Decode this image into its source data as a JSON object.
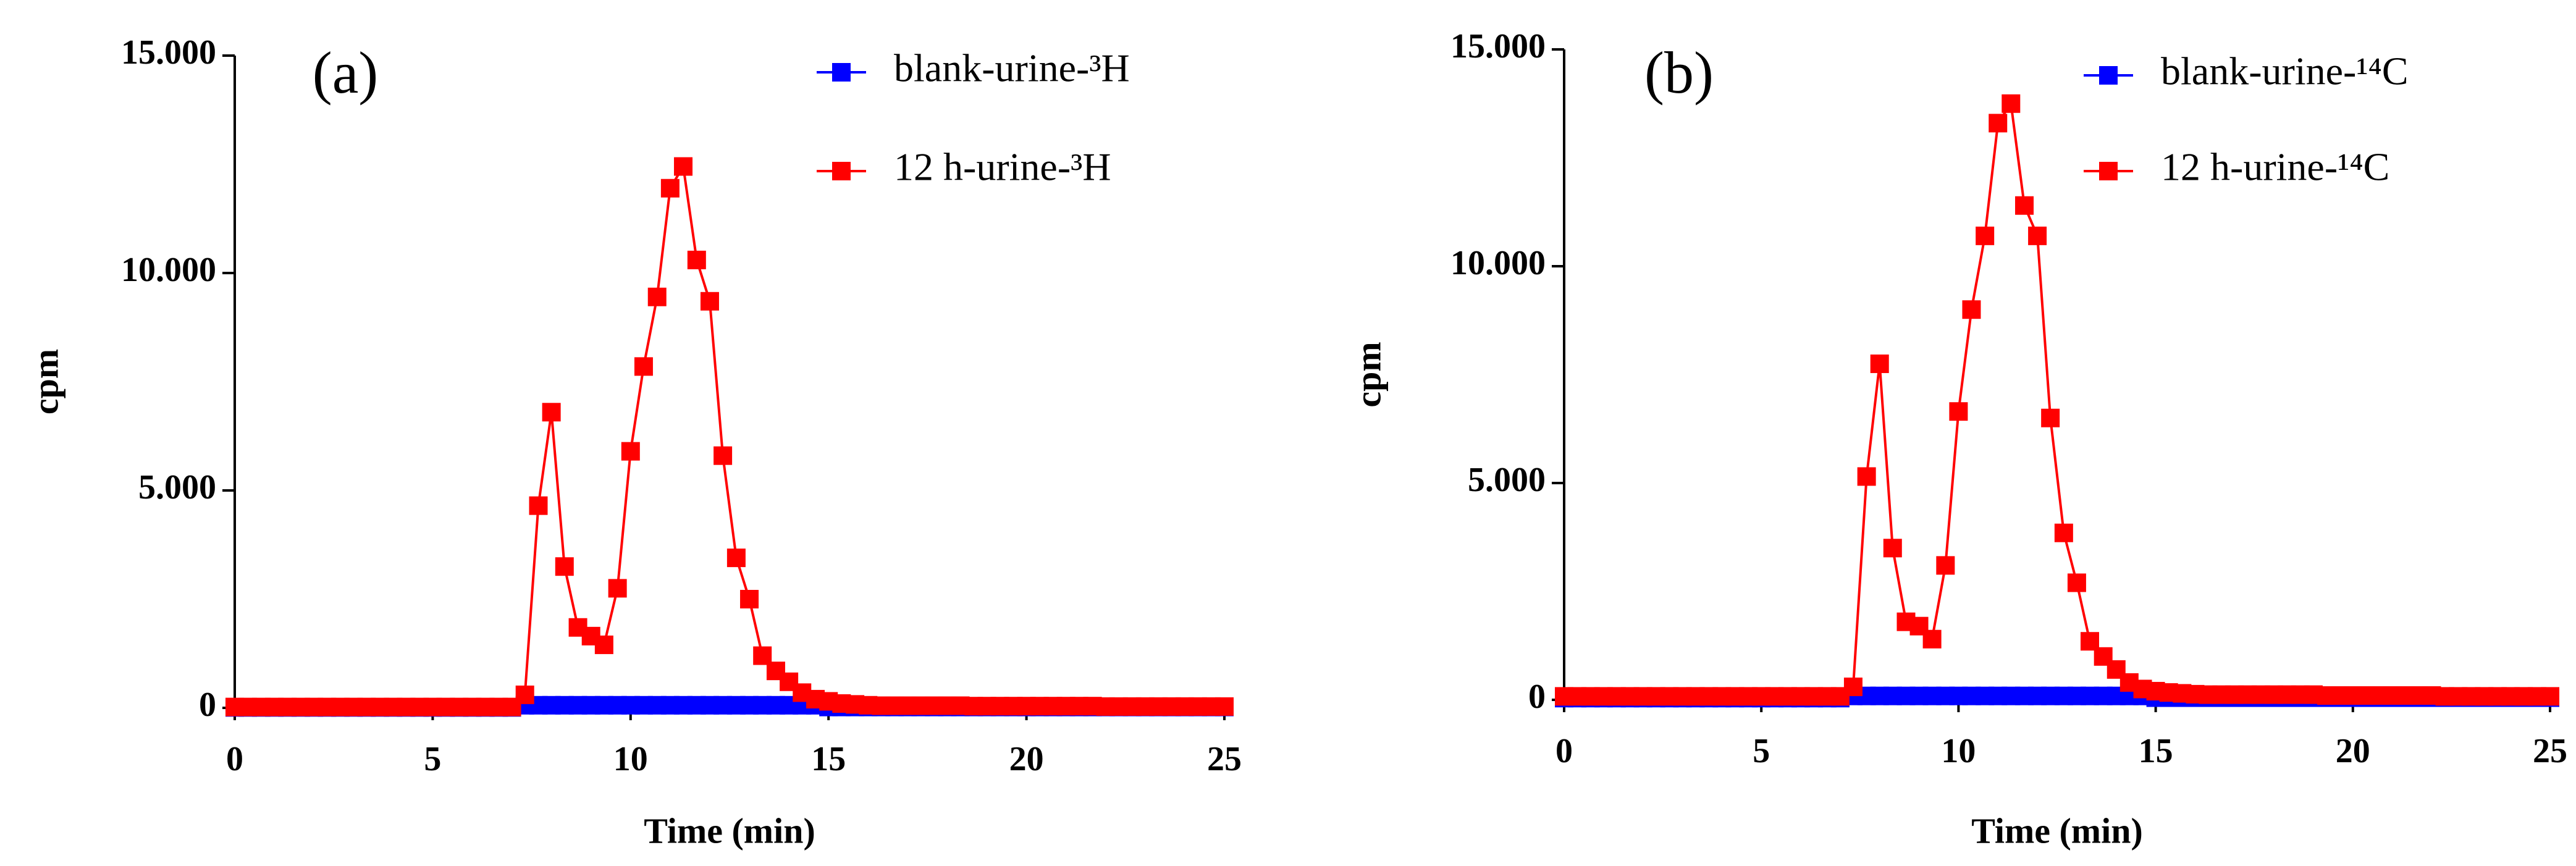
{
  "chart_data": [
    {
      "type": "line",
      "panel_label": "(a)",
      "xlabel": "Time (min)",
      "ylabel": "cpm",
      "xlim": [
        0,
        25
      ],
      "xticks": [
        0,
        5,
        10,
        15,
        20,
        25
      ],
      "ylim": [
        0,
        15000
      ],
      "yticks": [
        0,
        {
          "value": 5000,
          "label": "5.000"
        },
        {
          "value": 10000,
          "label": "10.000"
        },
        {
          "value": 15000,
          "label": "15.000"
        }
      ],
      "x": [
        0,
        0.33,
        0.67,
        1,
        1.33,
        1.67,
        2,
        2.33,
        2.67,
        3,
        3.33,
        3.67,
        4,
        4.33,
        4.67,
        5,
        5.33,
        5.67,
        6,
        6.33,
        6.67,
        7,
        7.33,
        7.67,
        8,
        8.33,
        8.67,
        9,
        9.33,
        9.67,
        10,
        10.33,
        10.67,
        11,
        11.33,
        11.67,
        12,
        12.33,
        12.67,
        13,
        13.33,
        13.67,
        14,
        14.33,
        14.67,
        15,
        15.33,
        15.67,
        16,
        16.33,
        16.67,
        17,
        17.33,
        17.67,
        18,
        18.33,
        18.67,
        19,
        19.33,
        19.67,
        20,
        20.33,
        20.67,
        21,
        21.33,
        21.67,
        22,
        22.33,
        22.67,
        23,
        23.33,
        23.67,
        24,
        24.33,
        24.67,
        25
      ],
      "series": [
        {
          "name": "blank-urine-³H",
          "color": "#0000ff",
          "values": [
            10,
            10,
            10,
            10,
            10,
            10,
            10,
            10,
            10,
            10,
            10,
            10,
            10,
            10,
            10,
            10,
            10,
            10,
            10,
            10,
            10,
            10,
            60,
            60,
            60,
            60,
            60,
            60,
            60,
            60,
            60,
            60,
            60,
            60,
            60,
            60,
            60,
            60,
            60,
            60,
            60,
            60,
            60,
            60,
            60,
            20,
            20,
            20,
            20,
            20,
            20,
            20,
            20,
            20,
            20,
            20,
            20,
            20,
            20,
            20,
            20,
            20,
            20,
            20,
            20,
            20,
            20,
            20,
            20,
            20,
            20,
            20,
            20,
            20,
            20,
            20
          ]
        },
        {
          "name": "12 h-urine-³H",
          "color": "#ff0000",
          "values": [
            20,
            20,
            20,
            20,
            20,
            20,
            20,
            20,
            20,
            20,
            20,
            20,
            20,
            20,
            20,
            20,
            20,
            20,
            20,
            20,
            20,
            20,
            300,
            4650,
            6800,
            3250,
            1850,
            1650,
            1450,
            2750,
            5900,
            7850,
            9450,
            11950,
            12450,
            10300,
            9350,
            5800,
            3450,
            2500,
            1200,
            850,
            600,
            350,
            200,
            150,
            100,
            80,
            60,
            50,
            50,
            50,
            50,
            50,
            50,
            50,
            40,
            40,
            40,
            40,
            40,
            40,
            40,
            40,
            40,
            40,
            30,
            30,
            30,
            30,
            30,
            30,
            30,
            30,
            30,
            30
          ]
        }
      ]
    },
    {
      "type": "line",
      "panel_label": "(b)",
      "xlabel": "Time (min)",
      "ylabel": "cpm",
      "xlim": [
        0,
        25
      ],
      "xticks": [
        0,
        5,
        10,
        15,
        20,
        25
      ],
      "ylim": [
        0,
        15000
      ],
      "yticks": [
        0,
        {
          "value": 5000,
          "label": "5.000"
        },
        {
          "value": 10000,
          "label": "10.000"
        },
        {
          "value": 15000,
          "label": "15.000"
        }
      ],
      "x": [
        0,
        0.33,
        0.67,
        1,
        1.33,
        1.67,
        2,
        2.33,
        2.67,
        3,
        3.33,
        3.67,
        4,
        4.33,
        4.67,
        5,
        5.33,
        5.67,
        6,
        6.33,
        6.67,
        7,
        7.33,
        7.67,
        8,
        8.33,
        8.67,
        9,
        9.33,
        9.67,
        10,
        10.33,
        10.67,
        11,
        11.33,
        11.67,
        12,
        12.33,
        12.67,
        13,
        13.33,
        13.67,
        14,
        14.33,
        14.67,
        15,
        15.33,
        15.67,
        16,
        16.33,
        16.67,
        17,
        17.33,
        17.67,
        18,
        18.33,
        18.67,
        19,
        19.33,
        19.67,
        20,
        20.33,
        20.67,
        21,
        21.33,
        21.67,
        22,
        22.33,
        22.67,
        23,
        23.33,
        23.67,
        24,
        24.33,
        24.67,
        25
      ],
      "series": [
        {
          "name": "blank-urine-¹⁴C",
          "color": "#0000ff",
          "values": [
            40,
            40,
            40,
            40,
            40,
            40,
            40,
            40,
            40,
            40,
            40,
            40,
            40,
            40,
            40,
            40,
            40,
            40,
            40,
            40,
            40,
            40,
            90,
            90,
            90,
            90,
            90,
            90,
            90,
            90,
            90,
            90,
            90,
            90,
            90,
            90,
            90,
            90,
            90,
            90,
            90,
            90,
            90,
            90,
            90,
            50,
            50,
            50,
            50,
            50,
            50,
            50,
            50,
            50,
            50,
            50,
            50,
            50,
            50,
            50,
            50,
            50,
            50,
            50,
            50,
            50,
            50,
            50,
            50,
            50,
            50,
            50,
            50,
            50,
            50,
            50
          ]
        },
        {
          "name": "12 h-urine-¹⁴C",
          "color": "#ff0000",
          "values": [
            80,
            80,
            80,
            80,
            80,
            80,
            80,
            80,
            80,
            80,
            80,
            80,
            80,
            80,
            80,
            80,
            80,
            80,
            80,
            80,
            80,
            80,
            300,
            5150,
            7750,
            3500,
            1800,
            1700,
            1400,
            3100,
            6650,
            9000,
            10700,
            13300,
            13750,
            11400,
            10700,
            6500,
            3850,
            2700,
            1350,
            1000,
            700,
            400,
            250,
            200,
            170,
            150,
            130,
            120,
            120,
            120,
            120,
            120,
            120,
            120,
            120,
            120,
            100,
            100,
            100,
            100,
            100,
            100,
            100,
            100,
            100,
            80,
            80,
            80,
            80,
            80,
            80,
            80,
            80,
            80
          ]
        }
      ]
    }
  ]
}
